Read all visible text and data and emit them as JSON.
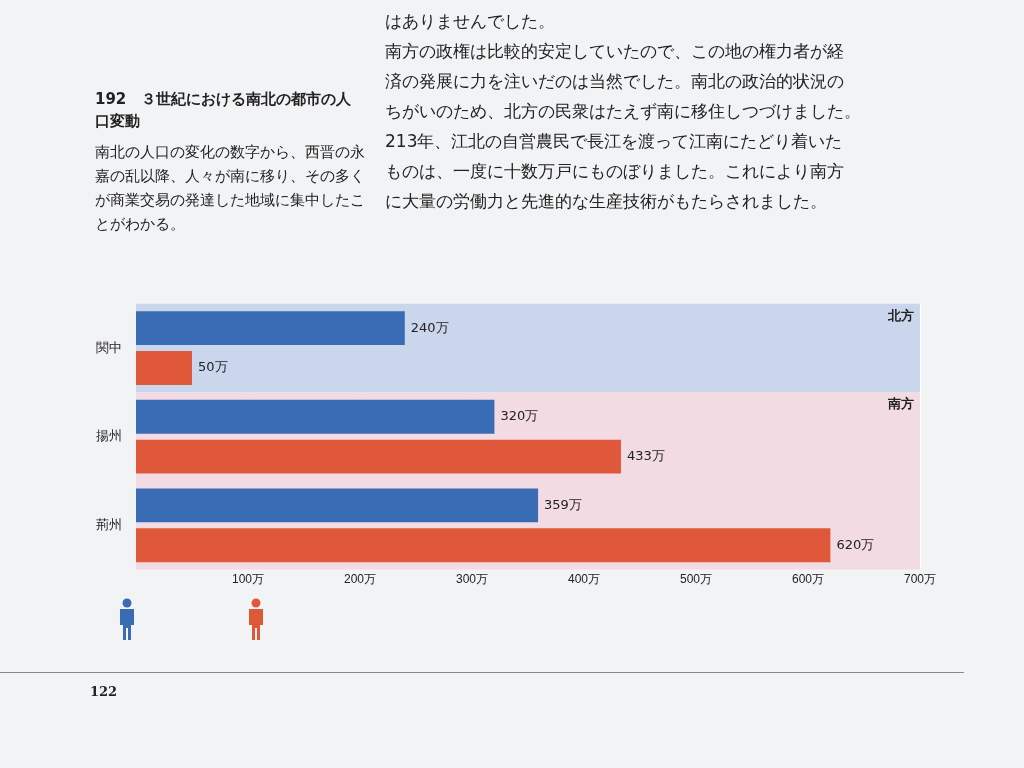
{
  "chart_data": {
    "type": "bar",
    "orientation": "horizontal",
    "title": "192　３世紀における南北の都市の人口変動",
    "subtitle": "南北の人口の変化の数字から、西晋の永嘉の乱以降、人々が南に移り、その多くが商業交易の発達した地域に集中したことがわかる。",
    "categories": [
      "関中",
      "揚州",
      "荊州"
    ],
    "series": [
      {
        "color": "#3a6bb5",
        "values": [
          240,
          320,
          359
        ],
        "value_labels": [
          "240万",
          "320万",
          "359万"
        ]
      },
      {
        "color": "#e0583a",
        "values": [
          50,
          433,
          620
        ],
        "value_labels": [
          "50万",
          "433万",
          "620万"
        ]
      }
    ],
    "xlim": [
      0,
      700
    ],
    "xticks": [
      {
        "value": 100,
        "label": "100万"
      },
      {
        "value": 200,
        "label": "200万"
      },
      {
        "value": 300,
        "label": "300万"
      },
      {
        "value": 400,
        "label": "400万"
      },
      {
        "value": 500,
        "label": "500万"
      },
      {
        "value": 600,
        "label": "600万"
      },
      {
        "value": 700,
        "label": "700万"
      }
    ],
    "grid": "x",
    "legend": false,
    "bands": [
      {
        "axis": "y",
        "from": "関中",
        "to": "関中",
        "label": "北方",
        "color": "#c9d6ec"
      },
      {
        "axis": "y",
        "from": "揚州",
        "to": "荊州",
        "label": "南方",
        "color": "#f3dbe3"
      }
    ],
    "annotations": [
      "はありませんでした。",
      "南方の政権は比較的安定していたので、この地の権力者が経",
      "済の発展に力を注いだのは当然でした。南北の政治的状況の",
      "ちがいのため、北方の民衆はたえず南に移住しつづけました。",
      "213年、江北の自営農民で長江を渡って江南にたどり着いた",
      "ものは、一度に十数万戸にものぼりました。これにより南方",
      "に大量の労働力と先進的な生産技術がもたらされました。",
      "122"
    ]
  }
}
